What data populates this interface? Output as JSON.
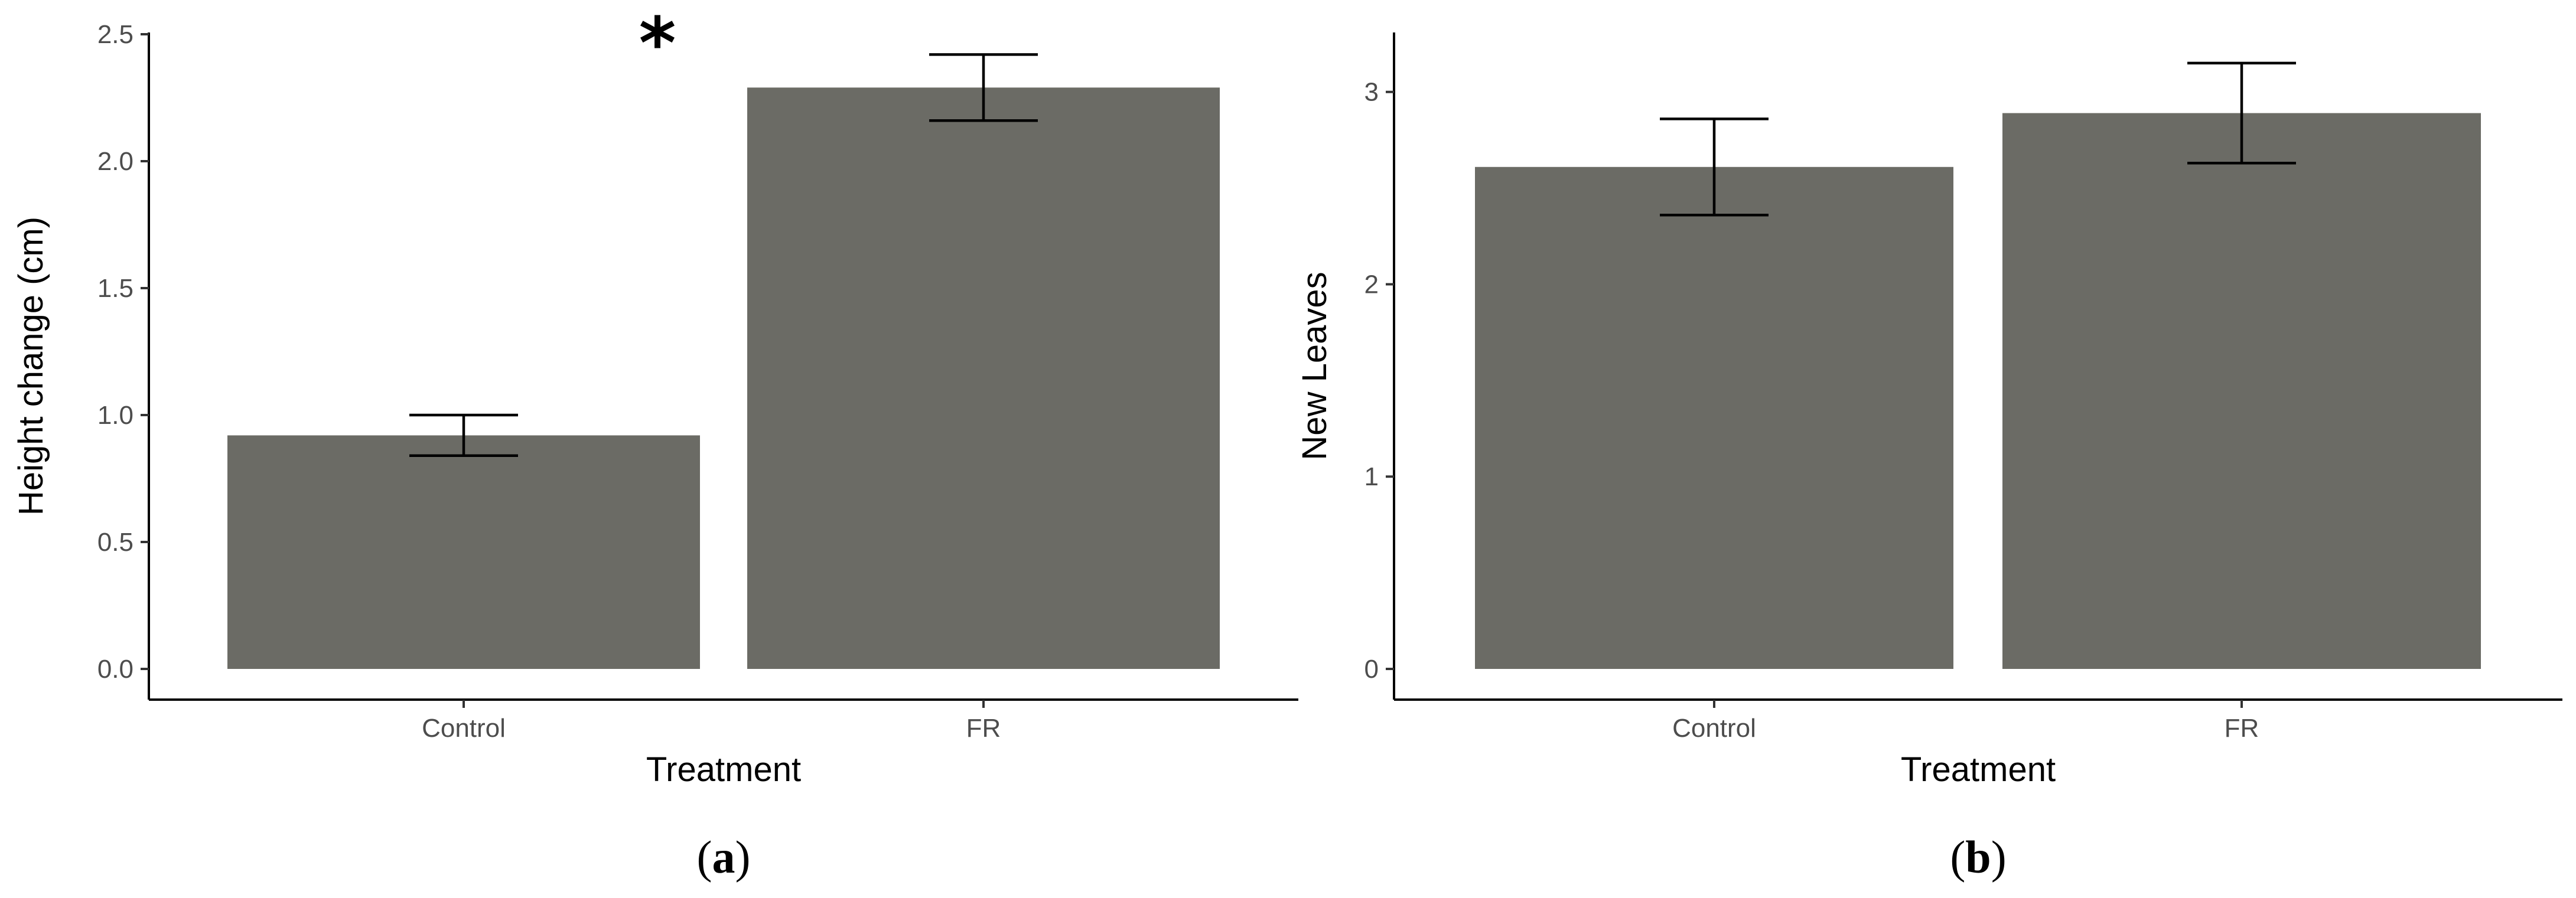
{
  "chart_data": [
    {
      "panel": "a",
      "type": "bar",
      "categories": [
        "Control",
        "FR"
      ],
      "values": [
        0.92,
        2.29
      ],
      "error_lower": [
        0.84,
        2.16
      ],
      "error_upper": [
        1.0,
        2.42
      ],
      "xlabel": "Treatment",
      "ylabel": "Height change (cm)",
      "ylim": [
        0,
        2.5
      ],
      "yticks": [
        0.0,
        0.5,
        1.0,
        1.5,
        2.0,
        2.5
      ],
      "ytick_labels": [
        "0.0",
        "0.5",
        "1.0",
        "1.5",
        "2.0",
        "2.5"
      ],
      "annotation": "*",
      "bar_color": "#6b6b65",
      "grid": false
    },
    {
      "panel": "b",
      "type": "bar",
      "categories": [
        "Control",
        "FR"
      ],
      "values": [
        2.61,
        2.89
      ],
      "error_lower": [
        2.36,
        2.63
      ],
      "error_upper": [
        2.86,
        3.15
      ],
      "xlabel": "Treatment",
      "ylabel": "New Leaves",
      "ylim": [
        0,
        3.3
      ],
      "yticks": [
        0,
        1,
        2,
        3
      ],
      "ytick_labels": [
        "0",
        "1",
        "2",
        "3"
      ],
      "bar_color": "#6b6b65",
      "grid": false
    }
  ],
  "panel_labels": [
    {
      "open": "(",
      "letter": "a",
      "close": ")"
    },
    {
      "open": "(",
      "letter": "b",
      "close": ")"
    }
  ]
}
